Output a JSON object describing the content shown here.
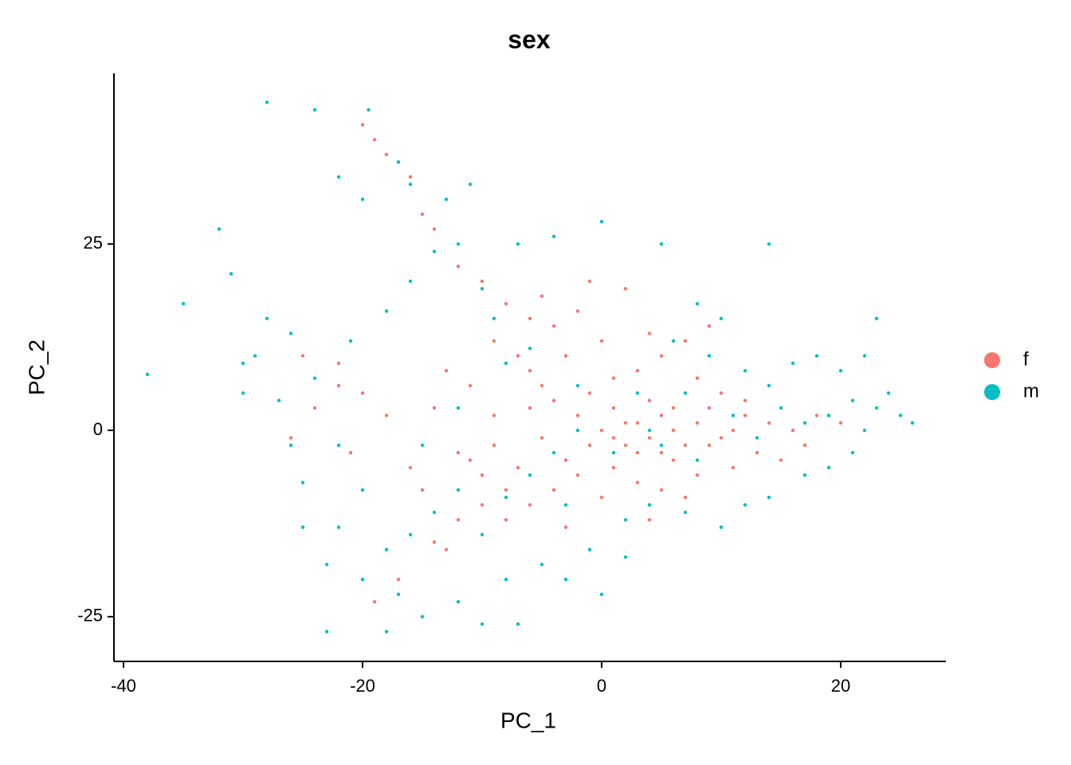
{
  "chart_data": {
    "type": "scatter",
    "title": "sex",
    "x_label": "PC_1",
    "y_label": "PC_2",
    "xlim": [
      -40.8,
      28.8
    ],
    "ylim": [
      -31,
      47.9
    ],
    "xticks": [
      -40,
      -20,
      0,
      20
    ],
    "yticks": [
      -25,
      0,
      25
    ],
    "grid": false,
    "legend": "right",
    "series": [
      {
        "name": "f",
        "color": "#F8766D",
        "x": [
          0,
          2,
          4,
          6,
          8,
          10,
          1,
          3,
          5,
          7,
          9,
          11,
          -1,
          -2,
          -3,
          -4,
          -5,
          -6,
          -7,
          -8,
          -10,
          -12,
          -9,
          -11,
          -13,
          -14,
          -6,
          -3,
          0,
          3,
          5,
          8,
          12,
          14,
          16,
          18,
          20,
          13,
          15,
          17,
          -8,
          -6,
          -4,
          -10,
          -12,
          -14,
          -17,
          -19,
          -16,
          -18,
          -20,
          -22,
          -24,
          -25,
          -26,
          -21,
          -18,
          -17,
          -16,
          -19,
          -20,
          -15,
          -14,
          -12,
          -10,
          -8,
          -6,
          -4,
          -2,
          2,
          4,
          7,
          9,
          10,
          11,
          -2,
          1,
          3,
          5,
          7,
          -1,
          1,
          2,
          4,
          6,
          8,
          -5,
          -7,
          -9,
          -11,
          0,
          -3,
          6,
          3,
          1,
          5,
          9,
          12,
          -15,
          -13,
          -22,
          -9,
          -5,
          -1,
          4
        ],
        "values": [
          0,
          1,
          -1,
          0,
          1,
          -1,
          3,
          -3,
          2,
          -2,
          3,
          0,
          -2,
          2,
          -4,
          4,
          -1,
          3,
          -5,
          -8,
          -6,
          -3,
          2,
          6,
          8,
          3,
          8,
          10,
          12,
          8,
          10,
          7,
          4,
          1,
          0,
          2,
          1,
          -3,
          -4,
          -2,
          -12,
          -10,
          -8,
          -10,
          -12,
          -15,
          -20,
          -23,
          -5,
          2,
          5,
          6,
          3,
          10,
          -1,
          -3,
          37,
          36,
          34,
          39,
          41,
          29,
          27,
          22,
          20,
          17,
          15,
          14,
          16,
          19,
          13,
          12,
          14,
          5,
          -5,
          -6,
          -5,
          -7,
          -8,
          -9,
          5,
          7,
          -2,
          4,
          -4,
          -6,
          6,
          10,
          -2,
          -4,
          -9,
          -13,
          3,
          1,
          -1,
          -3,
          -2,
          2,
          -8,
          -16,
          9,
          12,
          18,
          20,
          -12
        ]
      },
      {
        "name": "m",
        "color": "#00BFC4",
        "x": [
          -28,
          -38,
          -24,
          -19.5,
          -32,
          0,
          14,
          -31,
          -35,
          -30,
          -27,
          -25,
          -23,
          -25,
          -22,
          -20,
          -18,
          -23,
          -17,
          -15,
          -12,
          -10,
          -7,
          -8,
          -5,
          -3,
          -1,
          2,
          4,
          7,
          10,
          12,
          14,
          17,
          19,
          21,
          22,
          23,
          24,
          25,
          26,
          20,
          18,
          16,
          14,
          12,
          9,
          6,
          3,
          1,
          -2,
          -4,
          -6,
          -8,
          -10,
          -12,
          -14,
          -16,
          -18,
          -20,
          -22,
          -24,
          -26,
          -28,
          -30,
          -21,
          -18,
          -16,
          -14,
          -12,
          -10,
          -7,
          -4,
          -17,
          -16,
          -20,
          -22,
          -13,
          -11,
          -9,
          -6,
          -2,
          5,
          8,
          11,
          13,
          15,
          17,
          19,
          21,
          23,
          22,
          8,
          10,
          5,
          -8,
          -12,
          -15,
          0,
          2,
          -3,
          4,
          7,
          -26,
          -29
        ],
        "values": [
          44,
          7.5,
          43,
          43,
          27,
          28,
          25,
          21,
          17,
          9,
          4,
          -7,
          -18,
          -13,
          -13,
          -20,
          -27,
          -27,
          -22,
          -25,
          -23,
          -26,
          -26,
          -20,
          -18,
          -20,
          -16,
          -12,
          -10,
          -11,
          -13,
          -10,
          -9,
          -6,
          -5,
          -3,
          0,
          3,
          5,
          2,
          1,
          8,
          10,
          9,
          6,
          8,
          10,
          12,
          5,
          -3,
          0,
          -3,
          -6,
          -9,
          -14,
          -8,
          -11,
          -14,
          -16,
          -8,
          -2,
          7,
          13,
          15,
          5,
          12,
          16,
          20,
          24,
          25,
          19,
          25,
          26,
          36,
          33,
          31,
          34,
          31,
          33,
          15,
          11,
          6,
          -2,
          -4,
          2,
          -1,
          3,
          1,
          2,
          4,
          15,
          10,
          17,
          15,
          25,
          9,
          3,
          -2,
          -22,
          -17,
          -10,
          0,
          5,
          -2,
          10
        ]
      }
    ]
  }
}
